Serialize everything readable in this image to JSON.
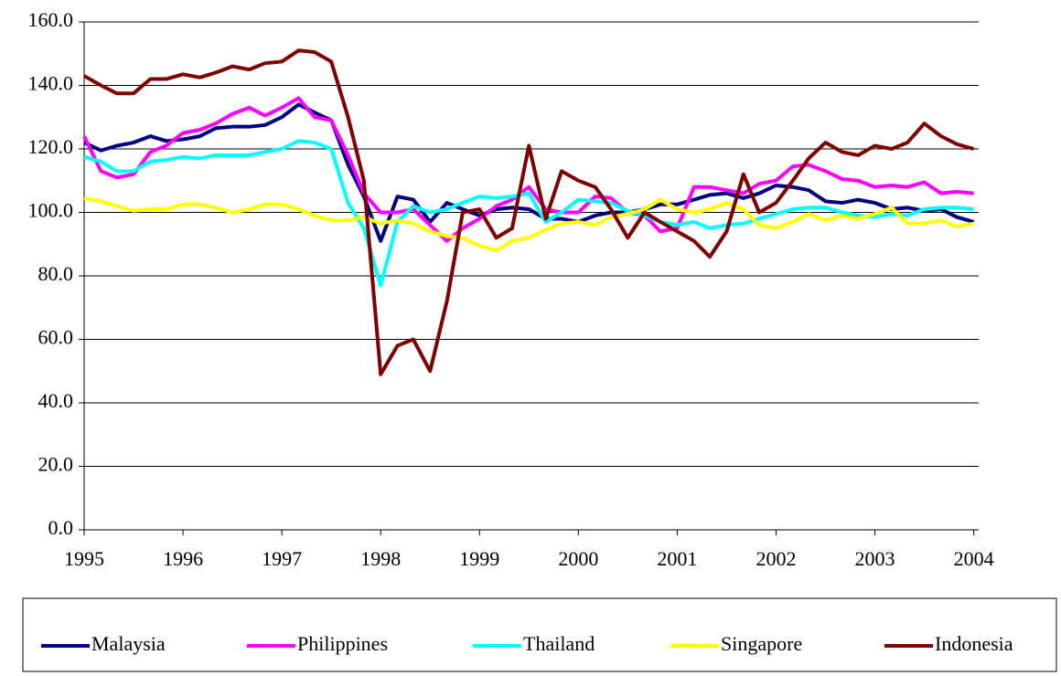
{
  "chart_data": {
    "type": "line",
    "x": [
      1995,
      1995.17,
      1995.33,
      1995.5,
      1995.67,
      1995.83,
      1996,
      1996.17,
      1996.33,
      1996.5,
      1996.67,
      1996.83,
      1997,
      1997.17,
      1997.33,
      1997.5,
      1997.67,
      1997.83,
      1998,
      1998.17,
      1998.33,
      1998.5,
      1998.67,
      1998.83,
      1999,
      1999.17,
      1999.33,
      1999.5,
      1999.67,
      1999.83,
      2000,
      2000.17,
      2000.33,
      2000.5,
      2000.67,
      2000.83,
      2001,
      2001.17,
      2001.33,
      2001.5,
      2001.67,
      2001.83,
      2002,
      2002.17,
      2002.33,
      2002.5,
      2002.67,
      2002.83,
      2003,
      2003.17,
      2003.33,
      2003.5,
      2003.67,
      2003.83,
      2004
    ],
    "series": [
      {
        "name": "Malaysia",
        "color": "#000080",
        "values": [
          122,
          119.5,
          121,
          122,
          124,
          122.5,
          123,
          124,
          126.5,
          127,
          127,
          127.5,
          130,
          134,
          131.5,
          129,
          115,
          105,
          91,
          105,
          104,
          97,
          103,
          101,
          99,
          101,
          101.5,
          101,
          98,
          98,
          97,
          99,
          100,
          100,
          101,
          102.5,
          102.5,
          104,
          105.5,
          106,
          104.5,
          106,
          108.5,
          108,
          107,
          103.5,
          103,
          104,
          103,
          101,
          101.5,
          100.5,
          101,
          98.5,
          97
        ]
      },
      {
        "name": "Philippines",
        "color": "#ff00ff",
        "values": [
          124,
          113,
          111,
          112,
          119,
          121,
          125,
          126,
          128,
          131,
          133,
          130.5,
          133,
          136,
          130,
          129,
          118,
          106,
          100,
          100,
          101,
          96,
          91,
          95,
          98,
          102,
          104,
          108,
          101,
          100,
          100,
          105,
          104.5,
          100,
          99,
          94,
          95,
          108,
          108,
          107,
          106,
          109,
          110,
          114.5,
          115,
          113,
          110.5,
          110,
          108,
          108.5,
          108,
          109.5,
          106,
          106.5,
          106
        ]
      },
      {
        "name": "Thailand",
        "color": "#00ffff",
        "values": [
          117.5,
          116,
          113,
          113,
          116,
          116.5,
          117.5,
          117,
          118,
          118,
          118,
          119,
          120,
          122.5,
          122,
          120,
          103,
          95,
          77,
          97,
          102,
          100,
          101,
          103,
          105,
          104.5,
          105,
          106,
          97,
          100,
          104,
          103.5,
          103,
          100.5,
          99,
          97,
          96,
          97,
          95,
          96,
          96.5,
          98,
          99.5,
          101,
          101.5,
          101.5,
          100,
          99,
          98.5,
          99.5,
          99,
          101,
          101.5,
          101.5,
          101
        ]
      },
      {
        "name": "Singapore",
        "color": "#ffff00",
        "values": [
          104.5,
          103.5,
          102,
          100.5,
          101,
          101,
          102.5,
          102.5,
          101.5,
          100,
          101,
          102.5,
          102.5,
          101,
          99,
          97.5,
          97.5,
          98.5,
          96.5,
          97.5,
          96.5,
          94,
          92.5,
          92,
          89.5,
          88,
          91,
          92,
          94.5,
          96.5,
          97,
          96,
          98.5,
          99.5,
          101,
          104,
          101,
          100,
          101,
          103,
          101,
          96,
          95,
          97,
          99.5,
          97.5,
          99,
          98,
          99.5,
          101.5,
          96.5,
          96.5,
          97.5,
          95.5,
          96.5
        ]
      },
      {
        "name": "Indonesia",
        "color": "#800000",
        "values": [
          143,
          140,
          137.5,
          137.5,
          142,
          142,
          143.5,
          142.5,
          144,
          146,
          145,
          147,
          147.5,
          151,
          150.5,
          147.5,
          130,
          110,
          49,
          58,
          60,
          50,
          72,
          100,
          101,
          92,
          95,
          121,
          98,
          113,
          110,
          108,
          101,
          92,
          100,
          97,
          94,
          91,
          86,
          94,
          112,
          100,
          103,
          110,
          117,
          122,
          119,
          118,
          121,
          120,
          122,
          128,
          124,
          121.5,
          120
        ]
      }
    ],
    "xlim": [
      1995,
      2004.05
    ],
    "xticks": [
      1995,
      1996,
      1997,
      1998,
      1999,
      2000,
      2001,
      2002,
      2003,
      2004
    ],
    "ylim": [
      0,
      160
    ],
    "yticks": [
      {
        "value": 0,
        "label": "0.0"
      },
      {
        "value": 20,
        "label": "20.0"
      },
      {
        "value": 40,
        "label": "40.0"
      },
      {
        "value": 60,
        "label": "60.0"
      },
      {
        "value": 80,
        "label": "80.0"
      },
      {
        "value": 100,
        "label": "100.0"
      },
      {
        "value": 120,
        "label": "120.0"
      },
      {
        "value": 140,
        "label": "140.0"
      },
      {
        "value": 160,
        "label": "160.0"
      }
    ],
    "grid": true,
    "legend": "bottom"
  }
}
